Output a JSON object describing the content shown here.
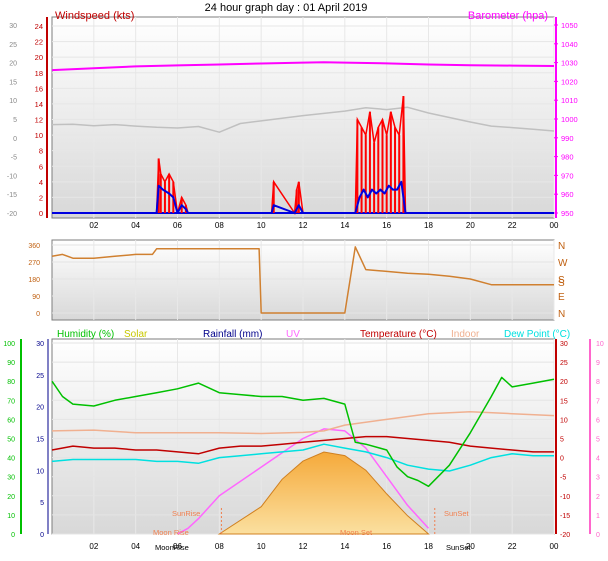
{
  "title": "24 hour graph day : 01 April 2019",
  "colors": {
    "wind_avg": "#0000e0",
    "wind_gust": "#ff0000",
    "barometer": "#ff00ff",
    "barometer_bg_line": "#c0c0c0",
    "direction": "#d08030",
    "humidity": "#00c000",
    "solar": "#c8c800",
    "rainfall": "#00008b",
    "uv": "#ff66ff",
    "temperature": "#c00000",
    "indoor": "#f0b090",
    "dewpoint": "#00e0e0",
    "sun": "#f0a030"
  },
  "x_ticks": [
    "02",
    "04",
    "06",
    "08",
    "10",
    "12",
    "14",
    "16",
    "18",
    "20",
    "22",
    "00"
  ],
  "chart_data": [
    {
      "type": "line",
      "panel": "wind-barometer",
      "left_label": "Windspeed (kts)",
      "right_label": "Barometer (hpa)",
      "left_ticks_outer": [
        "30",
        "25",
        "20",
        "15",
        "10",
        "5",
        "0",
        "-5",
        "-10",
        "-15",
        "-20"
      ],
      "left_ticks_inner": [
        "24",
        "22",
        "20",
        "18",
        "16",
        "14",
        "12",
        "10",
        "8",
        "6",
        "4",
        "2",
        "0"
      ],
      "right_ticks": [
        "1050",
        "1040",
        "1030",
        "1020",
        "1010",
        "1000",
        "990",
        "980",
        "970",
        "960",
        "950"
      ],
      "ylim_wind": [
        0,
        24
      ],
      "ylim_baro": [
        950,
        1050
      ],
      "series": [
        {
          "key": "barometer",
          "x": [
            0,
            2,
            4,
            6,
            8,
            10,
            12,
            13,
            14,
            16,
            18,
            20,
            22,
            24
          ],
          "values": [
            1026,
            1027,
            1028,
            1028.5,
            1029,
            1029.5,
            1030,
            1030.2,
            1030,
            1029.6,
            1029,
            1028.6,
            1028.4,
            1028.2
          ]
        },
        {
          "key": "barometer_bg",
          "x": [
            0,
            1,
            2,
            3,
            4,
            5,
            6,
            7,
            8,
            9,
            10,
            11,
            12,
            13,
            14,
            15,
            16,
            17,
            18,
            19,
            20,
            21,
            22,
            23,
            24
          ],
          "values": [
            3.5,
            3.6,
            3.2,
            3.5,
            3.1,
            2.8,
            2.6,
            3.0,
            1.5,
            3.8,
            4.5,
            5.2,
            5.9,
            6.5,
            7.1,
            8.0,
            7.5,
            8.1,
            6.6,
            5.4,
            4.2,
            3.1,
            2.7,
            2.3,
            1.8
          ]
        },
        {
          "key": "wind_gust",
          "x": [
            5.0,
            5.1,
            5.2,
            5.4,
            5.6,
            5.8,
            6.0,
            6.2,
            6.4,
            6.5,
            10.5,
            10.6,
            11.6,
            11.7,
            11.8,
            12.0,
            14.5,
            14.6,
            14.8,
            15.0,
            15.2,
            15.4,
            15.6,
            15.8,
            16.0,
            16.2,
            16.4,
            16.6,
            16.8,
            16.9
          ],
          "values": [
            0,
            7,
            5,
            4,
            5,
            4,
            0,
            2,
            1,
            0,
            0,
            4,
            0,
            3,
            4,
            0,
            0,
            12,
            11,
            10,
            13,
            9,
            11,
            12,
            10,
            13,
            11,
            10,
            15,
            0
          ]
        },
        {
          "key": "wind_avg",
          "x": [
            5.0,
            5.1,
            5.3,
            5.6,
            5.8,
            6.0,
            6.2,
            6.4,
            6.5,
            10.5,
            10.6,
            11.6,
            11.8,
            12.0,
            14.5,
            14.7,
            14.9,
            15.1,
            15.3,
            15.5,
            15.7,
            15.9,
            16.1,
            16.3,
            16.5,
            16.7,
            16.9
          ],
          "values": [
            0,
            3.5,
            3,
            2.5,
            2,
            0,
            1,
            0.5,
            0,
            0,
            1,
            0,
            1,
            0,
            0,
            2,
            3,
            2,
            3,
            2.5,
            3,
            2.5,
            3.5,
            3,
            3,
            4,
            0
          ]
        }
      ]
    },
    {
      "type": "scatter",
      "panel": "direction",
      "left_ticks": [
        "360",
        "270",
        "180",
        "90",
        "0"
      ],
      "right_ticks": [
        "N",
        "W",
        "S",
        "E",
        "N"
      ],
      "ylim": [
        0,
        360
      ],
      "series": [
        {
          "key": "direction",
          "x": [
            0,
            0.5,
            1,
            2,
            3,
            4,
            4.8,
            5,
            6,
            7,
            8,
            9,
            9.9,
            10,
            11,
            12,
            13,
            14,
            14.5,
            15,
            16,
            17,
            18,
            19,
            20,
            21,
            22,
            23,
            24
          ],
          "values": [
            300,
            310,
            290,
            290,
            300,
            310,
            310,
            340,
            340,
            340,
            340,
            340,
            340,
            0,
            0,
            0,
            0,
            0,
            350,
            230,
            220,
            210,
            205,
            195,
            180,
            150,
            150,
            150,
            150
          ]
        }
      ]
    },
    {
      "type": "line",
      "panel": "temperature-humidity",
      "legend": [
        "Humidity (%)",
        "Solar",
        "Rainfall (mm)",
        "UV",
        "Temperature (°C)",
        "Indoor",
        "Dew Point (°C)"
      ],
      "left_ticks_outer": [
        "100",
        "90",
        "80",
        "70",
        "60",
        "50",
        "40",
        "30",
        "20",
        "10",
        "0"
      ],
      "left_ticks_inner": [
        "30",
        "25",
        "20",
        "15",
        "10",
        "5",
        "0"
      ],
      "right_ticks_inner": [
        "30",
        "25",
        "20",
        "15",
        "10",
        "5",
        "0",
        "-5",
        "-10",
        "-15",
        "-20"
      ],
      "right_ticks_outer": [
        "10",
        "9",
        "8",
        "7",
        "6",
        "5",
        "4",
        "3",
        "2",
        "1",
        "0"
      ],
      "annotations": [
        "SunRise",
        "SunSet",
        "Moon Rise",
        "Moon Set",
        "MoonRise",
        "SunSet"
      ],
      "series": [
        {
          "key": "humidity",
          "x": [
            0,
            0.5,
            1,
            2,
            3,
            4,
            5,
            6,
            7,
            8,
            9,
            10,
            11,
            12,
            13,
            14,
            14.5,
            15,
            16,
            16.5,
            17,
            17.5,
            18,
            19,
            20,
            21,
            21.5,
            22,
            23,
            24
          ],
          "values": [
            80,
            72,
            68,
            67,
            70,
            72,
            74,
            76,
            79,
            74,
            73,
            72,
            72,
            70,
            71,
            68,
            48,
            47,
            44,
            35,
            30,
            28,
            25,
            36,
            53,
            72,
            82,
            77,
            79,
            81
          ]
        },
        {
          "key": "temperature",
          "x": [
            0,
            1,
            2,
            3,
            4,
            5,
            6,
            7,
            8,
            9,
            10,
            11,
            12,
            13,
            14,
            15,
            16,
            17,
            18,
            19,
            20,
            21,
            22,
            23,
            24
          ],
          "values": [
            2,
            3,
            2.5,
            2.5,
            2,
            2,
            1.5,
            1,
            2.5,
            3,
            3,
            3.5,
            4,
            4.5,
            5,
            5.5,
            5.5,
            5,
            4.5,
            4,
            3,
            2.5,
            2,
            1.5,
            1.5
          ]
        },
        {
          "key": "dewpoint",
          "x": [
            0,
            1,
            2,
            3,
            4,
            5,
            6,
            7,
            8,
            9,
            10,
            11,
            12,
            13,
            14,
            15,
            16,
            17,
            18,
            19,
            20,
            21,
            22,
            23,
            24
          ],
          "values": [
            -1,
            -0.5,
            -0.5,
            -0.5,
            -0.5,
            -1,
            -1,
            -1.5,
            0,
            0.5,
            1,
            1.5,
            2,
            3.5,
            2.5,
            1.5,
            0,
            -2,
            -3,
            -3.5,
            -2,
            0,
            1,
            0.5,
            0.5
          ]
        },
        {
          "key": "indoor",
          "x": [
            0,
            2,
            4,
            6,
            8,
            10,
            12,
            13,
            14,
            16,
            18,
            20,
            22,
            24
          ],
          "values": [
            7,
            7.2,
            6.5,
            6.5,
            6.5,
            6.3,
            6.6,
            7,
            8.5,
            10,
            11.5,
            12,
            11.5,
            11
          ]
        },
        {
          "key": "uv",
          "x": [
            6,
            6.5,
            7,
            8,
            10,
            12,
            13,
            14,
            15,
            16,
            17,
            18
          ],
          "values": [
            0,
            0.3,
            0.8,
            2,
            3.5,
            5,
            5.5,
            5.4,
            4.5,
            3,
            1.5,
            0.3
          ]
        },
        {
          "key": "solar_elevation",
          "x": [
            8,
            10,
            11,
            12,
            13,
            14,
            15,
            16,
            17,
            18
          ],
          "values": [
            0,
            15,
            30,
            40,
            45,
            43,
            35,
            22,
            10,
            0
          ]
        }
      ]
    }
  ]
}
